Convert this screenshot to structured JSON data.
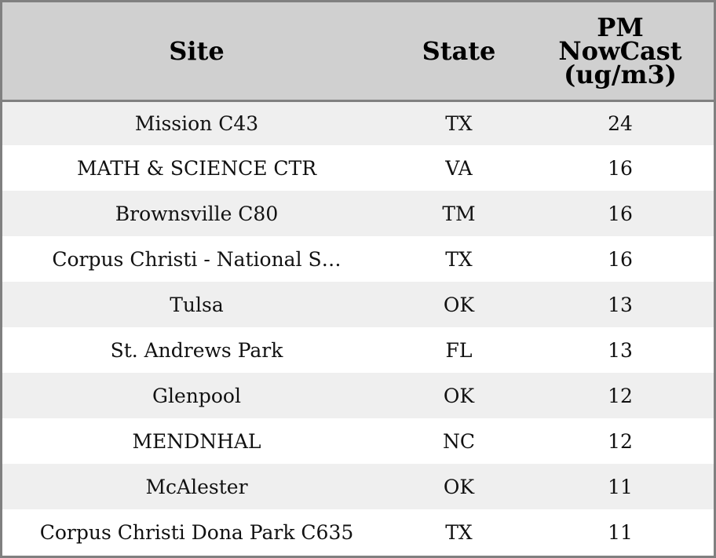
{
  "chart_data": {
    "type": "table",
    "columns": [
      "Site",
      "State",
      [
        "PM",
        "NowCast",
        "(ug/m3)"
      ]
    ],
    "rows": [
      {
        "site": "Mission C43",
        "state": "TX",
        "pm": 24
      },
      {
        "site": "MATH & SCIENCE CTR",
        "state": "VA",
        "pm": 16
      },
      {
        "site": "Brownsville C80",
        "state": "TM",
        "pm": 16
      },
      {
        "site": "Corpus Christi - National S…",
        "state": "TX",
        "pm": 16
      },
      {
        "site": "Tulsa",
        "state": "OK",
        "pm": 13
      },
      {
        "site": "St. Andrews Park",
        "state": "FL",
        "pm": 13
      },
      {
        "site": "Glenpool",
        "state": "OK",
        "pm": 12
      },
      {
        "site": "MENDNHAL",
        "state": "NC",
        "pm": 12
      },
      {
        "site": "McAlester",
        "state": "OK",
        "pm": 11
      },
      {
        "site": "Corpus Christi Dona Park C635",
        "state": "TX",
        "pm": 11
      }
    ]
  },
  "colors": {
    "header_background": "#d0d0d0",
    "row_striped": "#efefef",
    "row_plain": "#ffffff",
    "border": "#808080"
  }
}
